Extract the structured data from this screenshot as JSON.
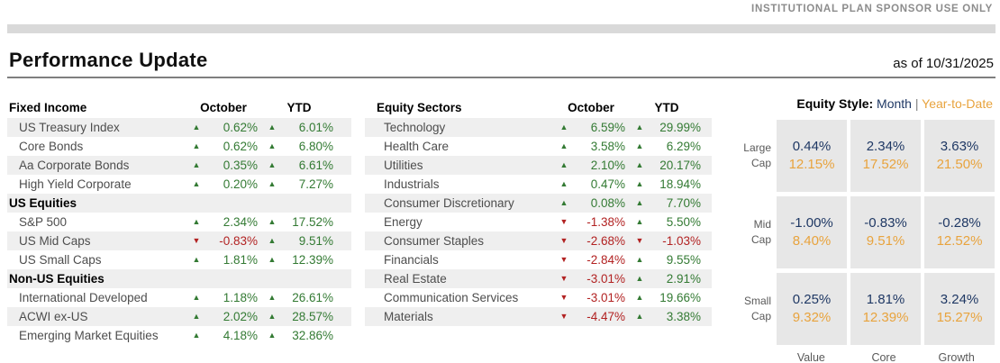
{
  "page": {
    "disclaimer": "INSTITUTIONAL PLAN SPONSOR USE ONLY",
    "title": "Performance Update",
    "as_of": "as of 10/31/2025"
  },
  "colors": {
    "positive_green": "#337A33",
    "negative_red": "#B22222",
    "month_navy": "#1F3864",
    "ytd_orange": "#E8A33D",
    "row_shade_gray": "#EFEFEF",
    "cell_gray": "#E7E7E7"
  },
  "fixed_income_table": {
    "title": "Fixed Income",
    "col_october": "October",
    "col_ytd": "YTD",
    "rows": [
      {
        "label": "US Treasury Index",
        "october": "0.62%",
        "october_dir": "up",
        "ytd": "6.01%",
        "ytd_dir": "up"
      },
      {
        "label": "Core Bonds",
        "october": "0.62%",
        "october_dir": "up",
        "ytd": "6.80%",
        "ytd_dir": "up"
      },
      {
        "label": "Aa Corporate Bonds",
        "october": "0.35%",
        "october_dir": "up",
        "ytd": "6.61%",
        "ytd_dir": "up"
      },
      {
        "label": "High Yield Corporate",
        "october": "0.20%",
        "october_dir": "up",
        "ytd": "7.27%",
        "ytd_dir": "up"
      },
      {
        "label": "US Equities",
        "section": true
      },
      {
        "label": "S&P 500",
        "october": "2.34%",
        "october_dir": "up",
        "ytd": "17.52%",
        "ytd_dir": "up"
      },
      {
        "label": "US Mid Caps",
        "october": "-0.83%",
        "october_dir": "down",
        "ytd": "9.51%",
        "ytd_dir": "up"
      },
      {
        "label": "US Small Caps",
        "october": "1.81%",
        "october_dir": "up",
        "ytd": "12.39%",
        "ytd_dir": "up"
      },
      {
        "label": "Non-US Equities",
        "section": true
      },
      {
        "label": "International Developed",
        "october": "1.18%",
        "october_dir": "up",
        "ytd": "26.61%",
        "ytd_dir": "up"
      },
      {
        "label": "ACWI ex-US",
        "october": "2.02%",
        "october_dir": "up",
        "ytd": "28.57%",
        "ytd_dir": "up"
      },
      {
        "label": "Emerging Market Equities",
        "october": "4.18%",
        "october_dir": "up",
        "ytd": "32.86%",
        "ytd_dir": "up"
      }
    ]
  },
  "equity_sectors_table": {
    "title": "Equity Sectors",
    "col_october": "October",
    "col_ytd": "YTD",
    "rows": [
      {
        "label": "Technology",
        "october": "6.59%",
        "october_dir": "up",
        "ytd": "29.99%",
        "ytd_dir": "up"
      },
      {
        "label": "Health Care",
        "october": "3.58%",
        "october_dir": "up",
        "ytd": "6.29%",
        "ytd_dir": "up"
      },
      {
        "label": "Utilities",
        "october": "2.10%",
        "october_dir": "up",
        "ytd": "20.17%",
        "ytd_dir": "up"
      },
      {
        "label": "Industrials",
        "october": "0.47%",
        "october_dir": "up",
        "ytd": "18.94%",
        "ytd_dir": "up"
      },
      {
        "label": "Consumer Discretionary",
        "october": "0.08%",
        "october_dir": "up",
        "ytd": "7.70%",
        "ytd_dir": "up"
      },
      {
        "label": "Energy",
        "october": "-1.38%",
        "october_dir": "down",
        "ytd": "5.50%",
        "ytd_dir": "up"
      },
      {
        "label": "Consumer Staples",
        "october": "-2.68%",
        "october_dir": "down",
        "ytd": "-1.03%",
        "ytd_dir": "down"
      },
      {
        "label": "Financials",
        "october": "-2.84%",
        "october_dir": "down",
        "ytd": "9.55%",
        "ytd_dir": "up"
      },
      {
        "label": "Real Estate",
        "october": "-3.01%",
        "october_dir": "down",
        "ytd": "2.91%",
        "ytd_dir": "up"
      },
      {
        "label": "Communication Services",
        "october": "-3.01%",
        "october_dir": "down",
        "ytd": "19.66%",
        "ytd_dir": "up"
      },
      {
        "label": "Materials",
        "october": "-4.47%",
        "october_dir": "down",
        "ytd": "3.38%",
        "ytd_dir": "up"
      }
    ]
  },
  "equity_style": {
    "title": "Equity Style:",
    "toggle_month": "Month",
    "toggle_separator": "|",
    "toggle_ytd": "Year-to-Date",
    "rows": [
      {
        "label_line1": "Large",
        "label_line2": "Cap",
        "cells": [
          {
            "month": "0.44%",
            "ytd": "12.15%"
          },
          {
            "month": "2.34%",
            "ytd": "17.52%"
          },
          {
            "month": "3.63%",
            "ytd": "21.50%"
          }
        ]
      },
      {
        "label_line1": "Mid",
        "label_line2": "Cap",
        "cells": [
          {
            "month": "-1.00%",
            "ytd": "8.40%"
          },
          {
            "month": "-0.83%",
            "ytd": "9.51%"
          },
          {
            "month": "-0.28%",
            "ytd": "12.52%"
          }
        ]
      },
      {
        "label_line1": "Small",
        "label_line2": "Cap",
        "cells": [
          {
            "month": "0.25%",
            "ytd": "9.32%"
          },
          {
            "month": "1.81%",
            "ytd": "12.39%"
          },
          {
            "month": "3.24%",
            "ytd": "15.27%"
          }
        ]
      }
    ],
    "column_labels": [
      "Value",
      "Core",
      "Growth"
    ]
  }
}
